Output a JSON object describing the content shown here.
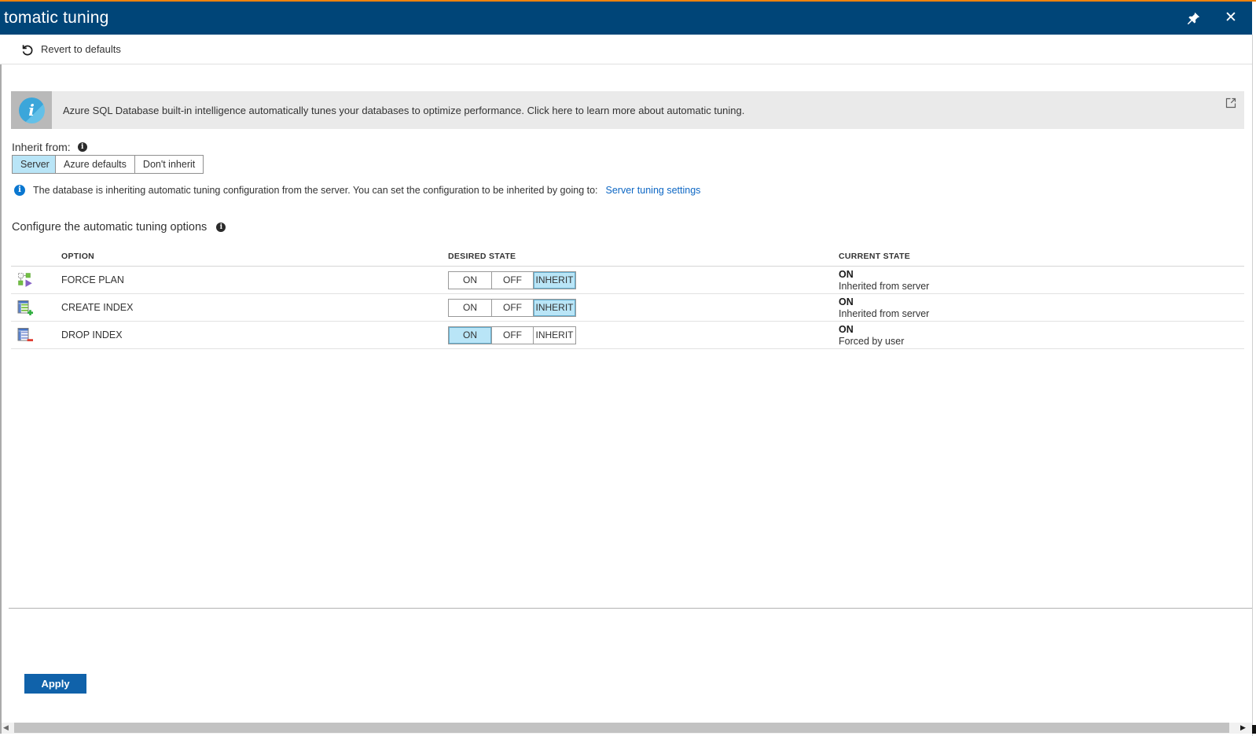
{
  "title_bar": {
    "title": "tomatic tuning",
    "pin_icon": "pin-icon",
    "close_icon": "close-icon"
  },
  "toolbar": {
    "revert_label": "Revert to defaults",
    "revert_icon": "undo-icon"
  },
  "banner": {
    "icon": "info-icon",
    "text": "Azure SQL Database built-in intelligence automatically tunes your databases to optimize performance. Click here to learn more about automatic tuning.",
    "corner_icon": "open-in-new-window-icon"
  },
  "inherit": {
    "label": "Inherit from:",
    "info_icon": "info-icon",
    "options": [
      "Server",
      "Azure defaults",
      "Don't inherit"
    ],
    "selected": "Server"
  },
  "info_message": {
    "icon": "info-icon",
    "text": "The database is inheriting automatic tuning configuration from the server. You can set the configuration to be inherited by going to:",
    "link": "Server tuning settings"
  },
  "options_section": {
    "heading": "Configure the automatic tuning options",
    "info_icon": "info-icon",
    "columns": [
      "OPTION",
      "DESIRED STATE",
      "CURRENT STATE"
    ],
    "state_options": [
      "ON",
      "OFF",
      "INHERIT"
    ],
    "rows": [
      {
        "option": "FORCE PLAN",
        "icon": "force-plan-icon",
        "desired": "INHERIT",
        "current": "ON",
        "current_detail": "Inherited from server"
      },
      {
        "option": "CREATE INDEX",
        "icon": "create-index-icon",
        "desired": "INHERIT",
        "current": "ON",
        "current_detail": "Inherited from server"
      },
      {
        "option": "DROP INDEX",
        "icon": "drop-index-icon",
        "desired": "ON",
        "current": "ON",
        "current_detail": "Forced by user"
      }
    ]
  },
  "footer": {
    "apply_label": "Apply"
  },
  "colors": {
    "title_bar": "#004578",
    "top_accent": "#ee830e",
    "banner_bg": "#eaeaea",
    "banner_icon_bg": "#b9b9b9",
    "banner_icon_blue": "#3ba6da",
    "selected_toggle": "#b9e5f7",
    "link": "#0d67c4",
    "info_blue": "#0a77d0",
    "apply_button": "#1062aa"
  }
}
